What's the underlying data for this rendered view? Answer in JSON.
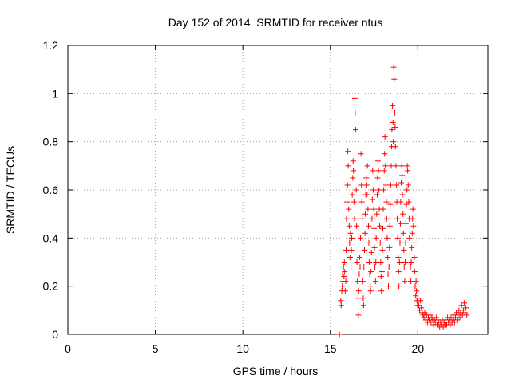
{
  "chart_data": {
    "type": "scatter",
    "title": "Day 152 of 2014, SRMTID for receiver ntus",
    "xlabel": "GPS time / hours",
    "ylabel": "SRMTID / TECUs",
    "xlim": [
      0,
      24
    ],
    "ylim": [
      0,
      1.2
    ],
    "xticks": [
      "0",
      "5",
      "10",
      "15",
      "20"
    ],
    "yticks": [
      "0",
      "0.2",
      "0.4",
      "0.6",
      "0.8",
      "1",
      "1.2"
    ],
    "grid": true,
    "marker": "+",
    "color": "#ff0000",
    "series": [
      {
        "name": "ntus",
        "x": [
          15.5,
          15.52,
          15.6,
          15.62,
          15.65,
          15.68,
          15.7,
          15.72,
          15.75,
          15.78,
          15.8,
          15.82,
          15.85,
          15.88,
          15.9,
          15.92,
          15.95,
          15.98,
          16.0,
          16.02,
          16.05,
          16.08,
          16.1,
          16.12,
          16.15,
          16.18,
          16.2,
          16.22,
          16.25,
          16.28,
          16.3,
          16.32,
          16.35,
          16.38,
          16.4,
          16.42,
          16.45,
          16.48,
          16.5,
          16.52,
          16.55,
          16.58,
          16.6,
          16.62,
          16.65,
          16.68,
          16.7,
          16.72,
          16.75,
          16.78,
          16.8,
          16.82,
          16.85,
          16.88,
          16.9,
          16.92,
          16.95,
          16.98,
          17.0,
          17.02,
          17.05,
          17.08,
          17.1,
          17.12,
          17.15,
          17.18,
          17.2,
          17.22,
          17.25,
          17.28,
          17.3,
          17.32,
          17.35,
          17.38,
          17.4,
          17.42,
          17.45,
          17.48,
          17.5,
          17.52,
          17.55,
          17.58,
          17.6,
          17.62,
          17.65,
          17.68,
          17.7,
          17.72,
          17.75,
          17.78,
          17.8,
          17.82,
          17.85,
          17.88,
          17.9,
          17.92,
          17.95,
          17.98,
          18.0,
          18.02,
          18.05,
          18.08,
          18.1,
          18.12,
          18.15,
          18.18,
          18.2,
          18.22,
          18.25,
          18.28,
          18.3,
          18.32,
          18.35,
          18.38,
          18.4,
          18.42,
          18.45,
          18.48,
          18.5,
          18.52,
          18.55,
          18.58,
          18.6,
          18.62,
          18.65,
          18.68,
          18.7,
          18.72,
          18.75,
          18.78,
          18.8,
          18.82,
          18.85,
          18.88,
          18.9,
          18.92,
          18.95,
          18.98,
          19.0,
          19.02,
          19.05,
          19.08,
          19.1,
          19.12,
          19.15,
          19.18,
          19.2,
          19.22,
          19.25,
          19.28,
          19.3,
          19.32,
          19.35,
          19.38,
          19.4,
          19.42,
          19.45,
          19.48,
          19.5,
          19.52,
          19.55,
          19.58,
          19.6,
          19.62,
          19.65,
          19.68,
          19.7,
          19.72,
          19.75,
          19.78,
          19.8,
          19.82,
          19.85,
          19.88,
          19.9,
          19.92,
          19.95,
          19.98,
          20.0,
          20.05,
          20.1,
          20.15,
          20.2,
          20.25,
          20.3,
          20.35,
          20.4,
          20.45,
          20.5,
          20.55,
          20.6,
          20.65,
          20.7,
          20.75,
          20.8,
          20.85,
          20.9,
          20.95,
          21.0,
          21.05,
          21.1,
          21.15,
          21.2,
          21.25,
          21.3,
          21.35,
          21.4,
          21.45,
          21.5,
          21.55,
          21.6,
          21.65,
          21.7,
          21.75,
          21.8,
          21.85,
          21.9,
          21.95,
          22.0,
          22.05,
          22.1,
          22.15,
          22.2,
          22.25,
          22.3,
          22.35,
          22.4,
          22.45,
          22.5,
          22.55,
          22.6,
          22.65,
          22.7,
          22.75,
          22.8
        ],
        "y": [
          0.0,
          0.0,
          0.14,
          0.12,
          0.18,
          0.2,
          0.25,
          0.22,
          0.28,
          0.24,
          0.3,
          0.26,
          0.18,
          0.22,
          0.35,
          0.48,
          0.55,
          0.62,
          0.76,
          0.7,
          0.52,
          0.45,
          0.38,
          0.32,
          0.42,
          0.28,
          0.35,
          0.4,
          0.58,
          0.65,
          0.72,
          0.68,
          0.55,
          0.48,
          0.98,
          0.92,
          0.85,
          0.6,
          0.45,
          0.3,
          0.22,
          0.15,
          0.08,
          0.18,
          0.25,
          0.32,
          0.28,
          0.4,
          0.75,
          0.62,
          0.55,
          0.48,
          0.22,
          0.15,
          0.12,
          0.28,
          0.35,
          0.42,
          0.5,
          0.58,
          0.65,
          0.62,
          0.58,
          0.7,
          0.52,
          0.45,
          0.38,
          0.3,
          0.25,
          0.2,
          0.18,
          0.26,
          0.34,
          0.48,
          0.56,
          0.68,
          0.6,
          0.52,
          0.44,
          0.36,
          0.28,
          0.22,
          0.3,
          0.4,
          0.5,
          0.58,
          0.65,
          0.72,
          0.68,
          0.6,
          0.52,
          0.45,
          0.38,
          0.3,
          0.24,
          0.18,
          0.26,
          0.35,
          0.44,
          0.52,
          0.6,
          0.68,
          0.75,
          0.82,
          0.7,
          0.62,
          0.55,
          0.48,
          0.4,
          0.32,
          0.25,
          0.2,
          0.28,
          0.36,
          0.45,
          0.54,
          0.62,
          0.7,
          0.78,
          0.85,
          0.95,
          0.88,
          0.8,
          1.11,
          1.06,
          0.92,
          0.86,
          0.78,
          0.7,
          0.62,
          0.55,
          0.48,
          0.4,
          0.32,
          0.26,
          0.2,
          0.3,
          0.38,
          0.46,
          0.55,
          0.63,
          0.7,
          0.66,
          0.58,
          0.5,
          0.42,
          0.35,
          0.28,
          0.22,
          0.3,
          0.38,
          0.46,
          0.54,
          0.6,
          0.7,
          0.68,
          0.62,
          0.55,
          0.48,
          0.4,
          0.33,
          0.28,
          0.22,
          0.3,
          0.36,
          0.42,
          0.48,
          0.52,
          0.45,
          0.38,
          0.32,
          0.26,
          0.2,
          0.16,
          0.22,
          0.18,
          0.14,
          0.12,
          0.15,
          0.12,
          0.1,
          0.14,
          0.11,
          0.09,
          0.08,
          0.07,
          0.09,
          0.06,
          0.08,
          0.05,
          0.07,
          0.06,
          0.08,
          0.05,
          0.07,
          0.06,
          0.04,
          0.06,
          0.05,
          0.07,
          0.04,
          0.06,
          0.05,
          0.03,
          0.05,
          0.04,
          0.06,
          0.03,
          0.05,
          0.04,
          0.06,
          0.04,
          0.07,
          0.05,
          0.06,
          0.04,
          0.07,
          0.05,
          0.06,
          0.08,
          0.05,
          0.07,
          0.09,
          0.06,
          0.08,
          0.1,
          0.07,
          0.09,
          0.12,
          0.08,
          0.1,
          0.13,
          0.09,
          0.11,
          0.08
        ]
      }
    ]
  }
}
